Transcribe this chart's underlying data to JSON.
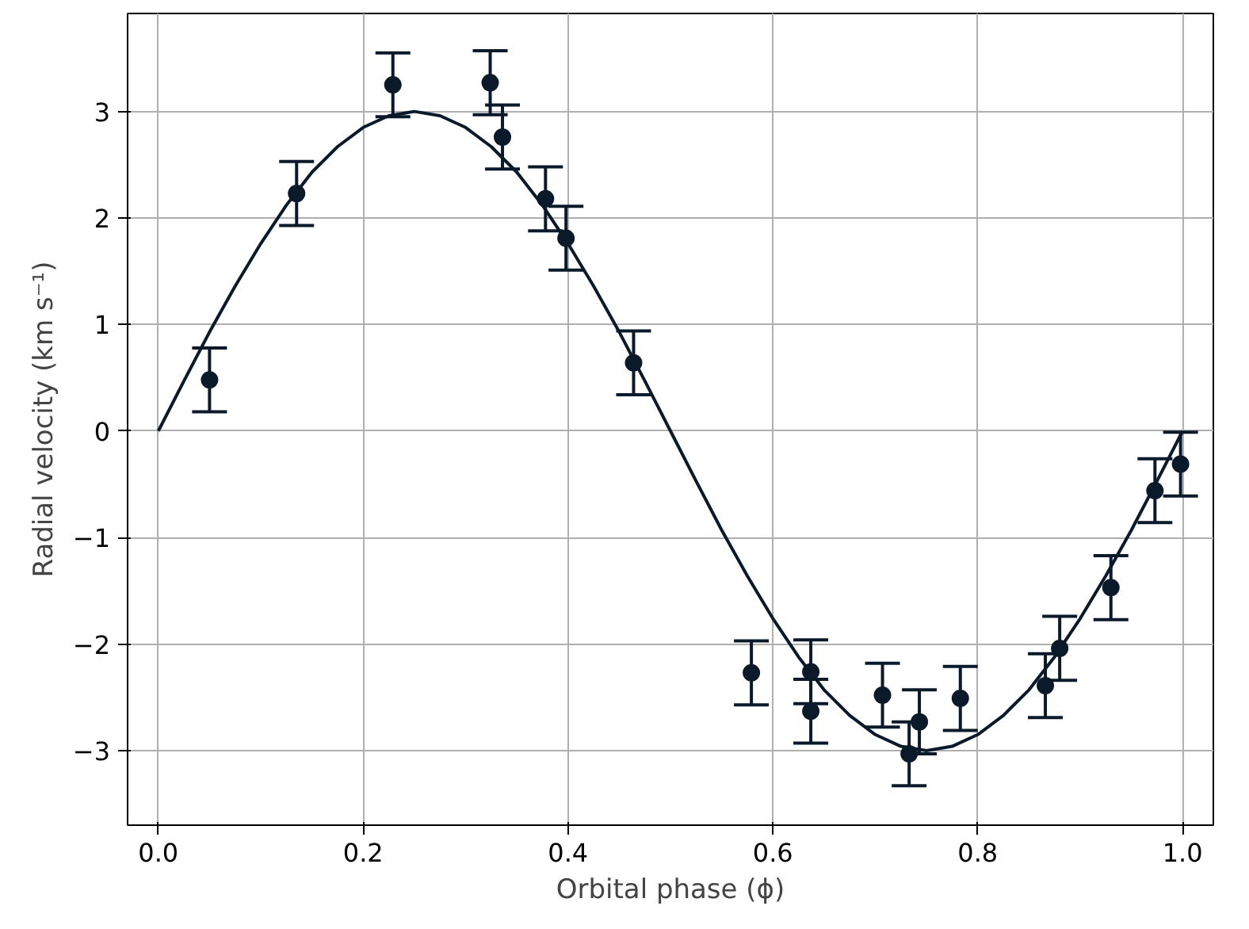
{
  "chart_data": {
    "type": "scatter",
    "xlabel": "Orbital phase (ϕ)",
    "ylabel": "Radial velocity (km s⁻¹)",
    "xlim": [
      -0.03,
      1.03
    ],
    "ylim": [
      -3.7,
      3.92
    ],
    "xticks": [
      {
        "value": 0,
        "label": "0.0"
      },
      0.2,
      0.4,
      0.6,
      0.8,
      {
        "value": 1,
        "label": "1.0"
      }
    ],
    "yticks": [
      {
        "value": -3,
        "label": "−3"
      },
      {
        "value": -2,
        "label": "−2"
      },
      {
        "value": -1,
        "label": "−1"
      },
      0,
      1,
      2,
      3
    ],
    "grid": true,
    "series": [
      {
        "color": "#0b1a2a",
        "marker": "circle",
        "x": [
          0.05,
          0.135,
          0.229,
          0.324,
          0.336,
          0.378,
          0.398,
          0.464,
          0.579,
          0.637,
          0.637,
          0.707,
          0.733,
          0.743,
          0.783,
          0.866,
          0.88,
          0.93,
          0.973,
          0.998
        ],
        "values": [
          0.48,
          2.23,
          3.25,
          3.27,
          2.76,
          2.18,
          1.81,
          0.64,
          -2.27,
          -2.26,
          -2.63,
          -2.48,
          -3.03,
          -2.73,
          -2.51,
          -2.39,
          -2.04,
          -1.47,
          -0.56,
          -0.31
        ],
        "errors": [
          0.3,
          0.3,
          0.3,
          0.3,
          0.3,
          0.3,
          0.3,
          0.3,
          0.3,
          0.3,
          0.3,
          0.3,
          0.3,
          0.3,
          0.3,
          0.3,
          0.3,
          0.3,
          0.3,
          0.3
        ]
      },
      {
        "type": "line",
        "color": "#0b1a2a",
        "marker": "none",
        "line_style": "solid",
        "x": [
          0,
          0.025,
          0.05,
          0.075,
          0.1,
          0.125,
          0.15,
          0.175,
          0.2,
          0.225,
          0.25,
          0.275,
          0.3,
          0.325,
          0.35,
          0.375,
          0.4,
          0.425,
          0.45,
          0.475,
          0.5,
          0.525,
          0.55,
          0.575,
          0.6,
          0.625,
          0.65,
          0.675,
          0.7,
          0.725,
          0.75,
          0.775,
          0.8,
          0.825,
          0.85,
          0.875,
          0.9,
          0.925,
          0.95,
          0.975,
          1.0
        ],
        "values": [
          0,
          0.47,
          0.93,
          1.36,
          1.76,
          2.12,
          2.43,
          2.67,
          2.85,
          2.96,
          3,
          2.96,
          2.85,
          2.67,
          2.43,
          2.12,
          1.76,
          1.36,
          0.93,
          0.47,
          0,
          -0.47,
          -0.93,
          -1.36,
          -1.76,
          -2.12,
          -2.43,
          -2.67,
          -2.85,
          -2.96,
          -3,
          -2.96,
          -2.85,
          -2.67,
          -2.43,
          -2.12,
          -1.76,
          -1.36,
          -0.93,
          -0.47,
          0
        ]
      }
    ]
  }
}
